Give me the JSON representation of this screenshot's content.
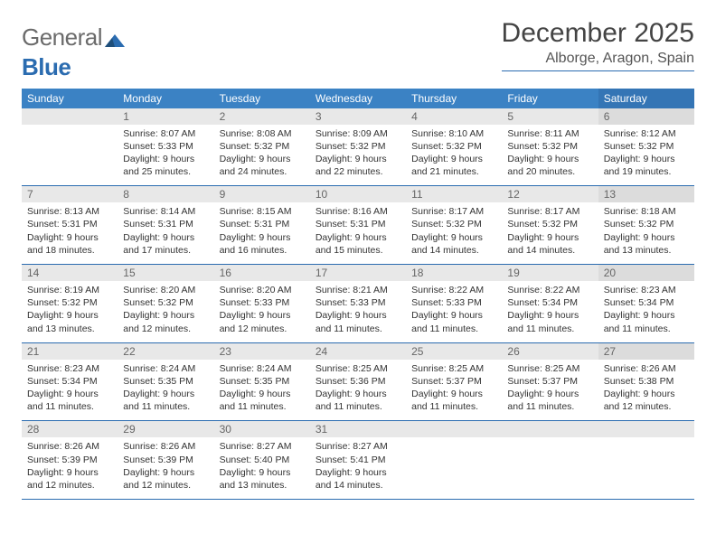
{
  "brand": {
    "part1": "General",
    "part2": "Blue"
  },
  "title": "December 2025",
  "location": "Alborge, Aragon, Spain",
  "colors": {
    "header_bg": "#3b82c4",
    "sat_header_bg": "#3475b5",
    "rule": "#2b6cb0",
    "daynum_bg": "#e8e8e8",
    "sat_daynum_bg": "#dcdcdc",
    "text": "#333333",
    "title_text": "#444444"
  },
  "typography": {
    "title_fontsize": 30,
    "location_fontsize": 16,
    "dayhead_fontsize": 12,
    "daynum_fontsize": 12,
    "body_fontsize": 10.5
  },
  "day_headers": [
    "Sunday",
    "Monday",
    "Tuesday",
    "Wednesday",
    "Thursday",
    "Friday",
    "Saturday"
  ],
  "weeks": [
    [
      null,
      {
        "n": "1",
        "sunrise": "8:07 AM",
        "sunset": "5:33 PM",
        "daylight": "9 hours and 25 minutes."
      },
      {
        "n": "2",
        "sunrise": "8:08 AM",
        "sunset": "5:32 PM",
        "daylight": "9 hours and 24 minutes."
      },
      {
        "n": "3",
        "sunrise": "8:09 AM",
        "sunset": "5:32 PM",
        "daylight": "9 hours and 22 minutes."
      },
      {
        "n": "4",
        "sunrise": "8:10 AM",
        "sunset": "5:32 PM",
        "daylight": "9 hours and 21 minutes."
      },
      {
        "n": "5",
        "sunrise": "8:11 AM",
        "sunset": "5:32 PM",
        "daylight": "9 hours and 20 minutes."
      },
      {
        "n": "6",
        "sunrise": "8:12 AM",
        "sunset": "5:32 PM",
        "daylight": "9 hours and 19 minutes."
      }
    ],
    [
      {
        "n": "7",
        "sunrise": "8:13 AM",
        "sunset": "5:31 PM",
        "daylight": "9 hours and 18 minutes."
      },
      {
        "n": "8",
        "sunrise": "8:14 AM",
        "sunset": "5:31 PM",
        "daylight": "9 hours and 17 minutes."
      },
      {
        "n": "9",
        "sunrise": "8:15 AM",
        "sunset": "5:31 PM",
        "daylight": "9 hours and 16 minutes."
      },
      {
        "n": "10",
        "sunrise": "8:16 AM",
        "sunset": "5:31 PM",
        "daylight": "9 hours and 15 minutes."
      },
      {
        "n": "11",
        "sunrise": "8:17 AM",
        "sunset": "5:32 PM",
        "daylight": "9 hours and 14 minutes."
      },
      {
        "n": "12",
        "sunrise": "8:17 AM",
        "sunset": "5:32 PM",
        "daylight": "9 hours and 14 minutes."
      },
      {
        "n": "13",
        "sunrise": "8:18 AM",
        "sunset": "5:32 PM",
        "daylight": "9 hours and 13 minutes."
      }
    ],
    [
      {
        "n": "14",
        "sunrise": "8:19 AM",
        "sunset": "5:32 PM",
        "daylight": "9 hours and 13 minutes."
      },
      {
        "n": "15",
        "sunrise": "8:20 AM",
        "sunset": "5:32 PM",
        "daylight": "9 hours and 12 minutes."
      },
      {
        "n": "16",
        "sunrise": "8:20 AM",
        "sunset": "5:33 PM",
        "daylight": "9 hours and 12 minutes."
      },
      {
        "n": "17",
        "sunrise": "8:21 AM",
        "sunset": "5:33 PM",
        "daylight": "9 hours and 11 minutes."
      },
      {
        "n": "18",
        "sunrise": "8:22 AM",
        "sunset": "5:33 PM",
        "daylight": "9 hours and 11 minutes."
      },
      {
        "n": "19",
        "sunrise": "8:22 AM",
        "sunset": "5:34 PM",
        "daylight": "9 hours and 11 minutes."
      },
      {
        "n": "20",
        "sunrise": "8:23 AM",
        "sunset": "5:34 PM",
        "daylight": "9 hours and 11 minutes."
      }
    ],
    [
      {
        "n": "21",
        "sunrise": "8:23 AM",
        "sunset": "5:34 PM",
        "daylight": "9 hours and 11 minutes."
      },
      {
        "n": "22",
        "sunrise": "8:24 AM",
        "sunset": "5:35 PM",
        "daylight": "9 hours and 11 minutes."
      },
      {
        "n": "23",
        "sunrise": "8:24 AM",
        "sunset": "5:35 PM",
        "daylight": "9 hours and 11 minutes."
      },
      {
        "n": "24",
        "sunrise": "8:25 AM",
        "sunset": "5:36 PM",
        "daylight": "9 hours and 11 minutes."
      },
      {
        "n": "25",
        "sunrise": "8:25 AM",
        "sunset": "5:37 PM",
        "daylight": "9 hours and 11 minutes."
      },
      {
        "n": "26",
        "sunrise": "8:25 AM",
        "sunset": "5:37 PM",
        "daylight": "9 hours and 11 minutes."
      },
      {
        "n": "27",
        "sunrise": "8:26 AM",
        "sunset": "5:38 PM",
        "daylight": "9 hours and 12 minutes."
      }
    ],
    [
      {
        "n": "28",
        "sunrise": "8:26 AM",
        "sunset": "5:39 PM",
        "daylight": "9 hours and 12 minutes."
      },
      {
        "n": "29",
        "sunrise": "8:26 AM",
        "sunset": "5:39 PM",
        "daylight": "9 hours and 12 minutes."
      },
      {
        "n": "30",
        "sunrise": "8:27 AM",
        "sunset": "5:40 PM",
        "daylight": "9 hours and 13 minutes."
      },
      {
        "n": "31",
        "sunrise": "8:27 AM",
        "sunset": "5:41 PM",
        "daylight": "9 hours and 14 minutes."
      },
      null,
      null,
      null
    ]
  ],
  "labels": {
    "sunrise": "Sunrise:",
    "sunset": "Sunset:",
    "daylight": "Daylight:"
  }
}
